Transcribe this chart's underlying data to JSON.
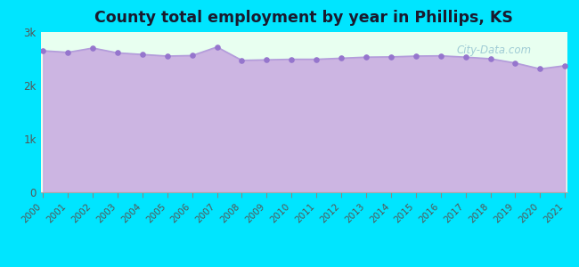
{
  "title": "County total employment by year in Phillips, KS",
  "years": [
    2000,
    2001,
    2002,
    2003,
    2004,
    2005,
    2006,
    2007,
    2008,
    2009,
    2010,
    2011,
    2012,
    2013,
    2014,
    2015,
    2016,
    2017,
    2018,
    2019,
    2020,
    2021
  ],
  "values": [
    2650,
    2620,
    2700,
    2610,
    2580,
    2550,
    2560,
    2720,
    2470,
    2480,
    2490,
    2490,
    2510,
    2530,
    2535,
    2550,
    2555,
    2530,
    2500,
    2420,
    2310,
    2370
  ],
  "ylim": [
    0,
    3000
  ],
  "yticks": [
    0,
    1000,
    2000,
    3000
  ],
  "ytick_labels": [
    "0",
    "1k",
    "2k",
    "3k"
  ],
  "line_color": "#b39ddb",
  "fill_color": "#c8a8e0",
  "marker_color": "#9575cd",
  "bg_color": "#00e5ff",
  "plot_bg_top": "#e8ffe8",
  "plot_bg_bottom": "#c8a8e0",
  "title_color": "#1a1a2e",
  "watermark": "City-Data.com",
  "xlabel_color": "#555555",
  "ylabel_color": "#555555"
}
